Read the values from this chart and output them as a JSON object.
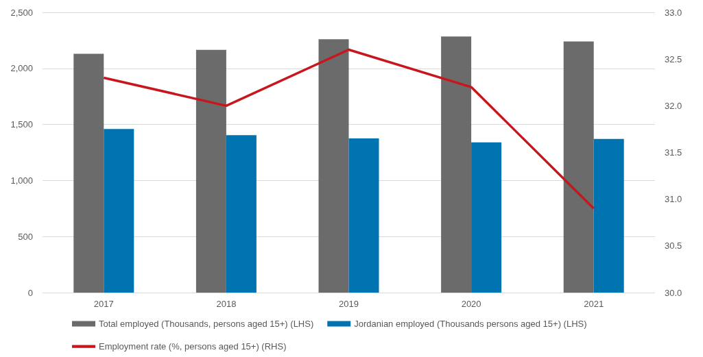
{
  "chart_data": {
    "type": "bar",
    "categories": [
      "2017",
      "2018",
      "2019",
      "2020",
      "2021"
    ],
    "series": [
      {
        "name": "Total employed (Thousands, persons aged 15+) (LHS)",
        "color": "#6b6b6b",
        "values": [
          2130,
          2165,
          2260,
          2285,
          2240
        ]
      },
      {
        "name": "Jordanian employed (Thousands persons aged 15+) (LHS)",
        "color": "#0073b1",
        "values": [
          1460,
          1405,
          1375,
          1340,
          1370
        ]
      },
      {
        "name": "Employment rate (%, persons aged 15+) (RHS)",
        "type": "line",
        "axis": "y2",
        "color": "#c8161d",
        "values": [
          32.3,
          32.0,
          32.6,
          32.2,
          30.9
        ]
      }
    ],
    "ylim": [
      0,
      2500
    ],
    "yticks": [
      {
        "value": 0,
        "label": "0"
      },
      {
        "value": 500,
        "label": "500"
      },
      {
        "value": 1000,
        "label": "1,000"
      },
      {
        "value": 1500,
        "label": "1,500"
      },
      {
        "value": 2000,
        "label": "2,000"
      },
      {
        "value": 2500,
        "label": "2,500"
      }
    ],
    "y2lim": [
      30,
      33
    ],
    "y2ticks": [
      {
        "value": 30,
        "label": "30.0"
      },
      {
        "value": 30.5,
        "label": "30.5"
      },
      {
        "value": 31,
        "label": "31.0"
      },
      {
        "value": 31.5,
        "label": "31.5"
      },
      {
        "value": 32,
        "label": "32.0"
      },
      {
        "value": 32.5,
        "label": "32.5"
      },
      {
        "value": 33,
        "label": "33.0"
      }
    ],
    "grid": "y",
    "legend": "bottom",
    "marker": "none"
  }
}
